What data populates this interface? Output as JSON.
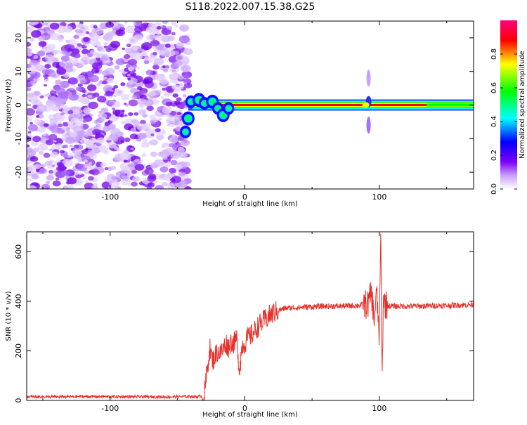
{
  "page_title": "S118.2022.007.15.38.G25",
  "chart_data": [
    {
      "type": "heatmap",
      "title": "S118.2022.007.15.38.G25",
      "xlabel": "Height of straight line (km)",
      "ylabel": "Frequency (Hz)",
      "xlim": [
        -162,
        170
      ],
      "ylim": [
        -25,
        25
      ],
      "x_ticks": [
        -100,
        0,
        100
      ],
      "x_tick_labels": [
        "-100",
        "0",
        "100"
      ],
      "y_ticks": [
        -20,
        -10,
        0,
        10,
        20
      ],
      "y_tick_labels": [
        "-20",
        "-10",
        "0",
        "10",
        "20"
      ],
      "grid": false,
      "colormap": [
        "#ffffff",
        "#c9a0ff",
        "#7f00ff",
        "#0000ff",
        "#00ffff",
        "#00ff00",
        "#ffff00",
        "#ff0000",
        "#ff007f"
      ],
      "colorbar": {
        "label": "Normalized spectral amplitude",
        "range": [
          0,
          1
        ],
        "ticks": [
          0.0,
          0.2,
          0.4,
          0.6,
          0.8
        ],
        "tick_labels": [
          "0.0",
          "0.2",
          "0.4",
          "0.6",
          "0.8"
        ]
      },
      "features": {
        "noise_region_x": [
          -162,
          -42
        ],
        "noise_amplitude": 0.25,
        "carrier_frequency_hz": 0,
        "carrier_x": [
          -42,
          170
        ],
        "carrier_peak_amplitude": 0.95,
        "spur_x": 92,
        "spur_frequency_range_hz": [
          -8,
          10
        ]
      }
    },
    {
      "type": "line",
      "xlabel": "Height of straight line (km)",
      "ylabel": "SNR (10 * v/v)",
      "xlim": [
        -162,
        170
      ],
      "ylim": [
        0,
        680
      ],
      "x_ticks": [
        -100,
        0,
        100
      ],
      "x_tick_labels": [
        "-100",
        "0",
        "100"
      ],
      "y_ticks": [
        0,
        200,
        400,
        600
      ],
      "y_tick_labels": [
        "0",
        "200",
        "400",
        "600"
      ],
      "grid": false,
      "series": [
        {
          "color": "#e8302a",
          "x": [
            -162,
            -140,
            -120,
            -100,
            -80,
            -60,
            -40,
            -35,
            -30,
            -28,
            -26,
            -24,
            -22,
            -20,
            -18,
            -16,
            -14,
            -12,
            -10,
            -8,
            -6,
            -4,
            -2,
            0,
            2,
            4,
            6,
            8,
            10,
            14,
            18,
            22,
            26,
            30,
            40,
            50,
            60,
            70,
            80,
            88,
            92,
            94,
            96,
            98,
            100,
            101,
            102,
            103,
            104,
            106,
            110,
            120,
            130,
            140,
            150,
            160,
            170
          ],
          "y": [
            15,
            14,
            16,
            15,
            15,
            14,
            16,
            15,
            20,
            120,
            210,
            160,
            180,
            200,
            190,
            210,
            230,
            215,
            240,
            230,
            250,
            120,
            220,
            230,
            250,
            260,
            270,
            285,
            300,
            320,
            340,
            355,
            365,
            372,
            375,
            378,
            380,
            380,
            382,
            385,
            390,
            440,
            330,
            430,
            250,
            680,
            60,
            420,
            390,
            382,
            380,
            380,
            380,
            382,
            383,
            385,
            386
          ]
        }
      ]
    }
  ]
}
